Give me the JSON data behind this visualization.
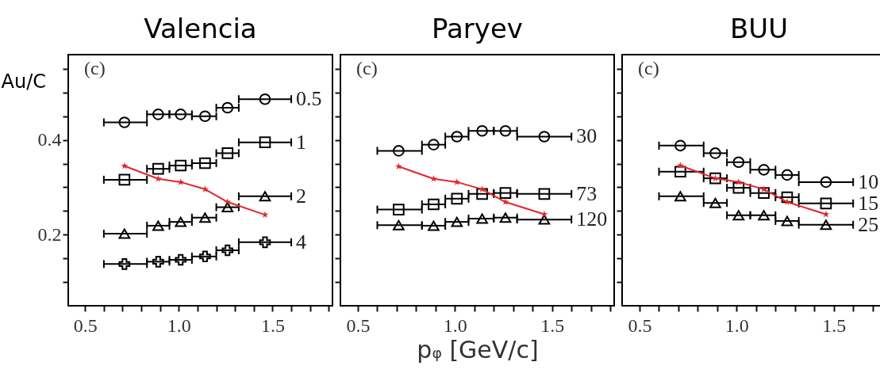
{
  "chart_data": [
    {
      "type": "scatter",
      "title": "Valencia",
      "ylabel": "Au/C",
      "annotations": [
        "(c)"
      ],
      "x": [
        0.71,
        0.89,
        1.01,
        1.14,
        1.26,
        1.46
      ],
      "xlim": [
        0.41,
        1.82
      ],
      "ylim": [
        0.05,
        0.58
      ],
      "xticks": [
        {
          "value": 0.5,
          "label": "0.5"
        },
        {
          "value": 0.6,
          "label": null
        },
        {
          "value": 0.7,
          "label": null
        },
        {
          "value": 0.8,
          "label": null
        },
        {
          "value": 0.9,
          "label": null
        },
        {
          "value": 1.0,
          "label": "1.0"
        },
        {
          "value": 1.1,
          "label": null
        },
        {
          "value": 1.2,
          "label": null
        },
        {
          "value": 1.3,
          "label": null
        },
        {
          "value": 1.4,
          "label": null
        },
        {
          "value": 1.5,
          "label": "1.5"
        },
        {
          "value": 1.6,
          "label": null
        },
        {
          "value": 1.7,
          "label": null
        },
        {
          "value": 1.8,
          "label": null
        }
      ],
      "yticks": [
        {
          "value": 0.1,
          "label": null
        },
        {
          "value": 0.15,
          "label": null
        },
        0.2,
        {
          "value": 0.25,
          "label": null
        },
        {
          "value": 0.3,
          "label": null
        },
        {
          "value": 0.35,
          "label": null
        },
        0.4,
        {
          "value": 0.45,
          "label": null
        },
        {
          "value": 0.5,
          "label": null
        },
        {
          "value": 0.55,
          "label": null
        }
      ],
      "series": [
        {
          "name": "0.5",
          "type": "scatter",
          "marker": "circle",
          "color": "#000000",
          "values": [
            0.437,
            0.454,
            0.454,
            0.45,
            0.468,
            0.486
          ],
          "xerrors": [
            [
              0.6,
              0.83
            ],
            [
              0.83,
              0.95
            ],
            [
              0.95,
              1.07
            ],
            [
              1.07,
              1.2
            ],
            [
              1.2,
              1.32
            ],
            [
              1.32,
              1.6
            ]
          ]
        },
        {
          "name": "1",
          "type": "scatter",
          "marker": "square",
          "color": "#000000",
          "values": [
            0.316,
            0.339,
            0.346,
            0.351,
            0.372,
            0.395
          ],
          "xerrors": [
            [
              0.6,
              0.83
            ],
            [
              0.83,
              0.95
            ],
            [
              0.95,
              1.07
            ],
            [
              1.07,
              1.2
            ],
            [
              1.2,
              1.32
            ],
            [
              1.32,
              1.6
            ]
          ]
        },
        {
          "name": "2",
          "type": "scatter",
          "marker": "triangle",
          "color": "#000000",
          "values": [
            0.202,
            0.219,
            0.227,
            0.236,
            0.258,
            0.281
          ],
          "xerrors": [
            [
              0.6,
              0.83
            ],
            [
              0.83,
              0.95
            ],
            [
              0.95,
              1.07
            ],
            [
              1.07,
              1.2
            ],
            [
              1.2,
              1.32
            ],
            [
              1.32,
              1.6
            ]
          ]
        },
        {
          "name": "4",
          "type": "scatter",
          "marker": "cross",
          "color": "#000000",
          "values": [
            0.138,
            0.143,
            0.147,
            0.154,
            0.167,
            0.184
          ],
          "xerrors": [
            [
              0.6,
              0.83
            ],
            [
              0.83,
              0.95
            ],
            [
              0.95,
              1.07
            ],
            [
              1.07,
              1.2
            ],
            [
              1.2,
              1.32
            ],
            [
              1.32,
              1.6
            ]
          ]
        },
        {
          "type": "line",
          "marker": "star",
          "color": "#e0282e",
          "values": [
            0.345,
            0.318,
            0.311,
            0.296,
            0.269,
            0.242
          ]
        }
      ]
    },
    {
      "type": "scatter",
      "title": "Paryev",
      "xlabel": "pᵩ [GeV/c]",
      "annotations": [
        "(c)"
      ],
      "tick_labels": "x",
      "x": [
        0.71,
        0.89,
        1.01,
        1.14,
        1.26,
        1.46
      ],
      "xlim": [
        0.41,
        1.82
      ],
      "ylim": [
        0.05,
        0.58
      ],
      "xticks": [
        {
          "value": 0.5,
          "label": "0.5"
        },
        {
          "value": 0.6,
          "label": null
        },
        {
          "value": 0.7,
          "label": null
        },
        {
          "value": 0.8,
          "label": null
        },
        {
          "value": 0.9,
          "label": null
        },
        {
          "value": 1.0,
          "label": "1.0"
        },
        {
          "value": 1.1,
          "label": null
        },
        {
          "value": 1.2,
          "label": null
        },
        {
          "value": 1.3,
          "label": null
        },
        {
          "value": 1.4,
          "label": null
        },
        {
          "value": 1.5,
          "label": "1.5"
        },
        {
          "value": 1.6,
          "label": null
        },
        {
          "value": 1.7,
          "label": null
        },
        {
          "value": 1.8,
          "label": null
        }
      ],
      "yticks": [
        {
          "value": 0.1,
          "label": null
        },
        {
          "value": 0.15,
          "label": null
        },
        {
          "value": 0.2,
          "label": null
        },
        {
          "value": 0.25,
          "label": null
        },
        {
          "value": 0.3,
          "label": null
        },
        {
          "value": 0.35,
          "label": null
        },
        {
          "value": 0.4,
          "label": null
        },
        {
          "value": 0.45,
          "label": null
        },
        {
          "value": 0.5,
          "label": null
        },
        {
          "value": 0.55,
          "label": null
        }
      ],
      "series": [
        {
          "name": "30",
          "type": "scatter",
          "marker": "circle",
          "color": "#000000",
          "values": [
            0.377,
            0.39,
            0.407,
            0.419,
            0.419,
            0.407
          ],
          "xerrors": [
            [
              0.6,
              0.83
            ],
            [
              0.83,
              0.95
            ],
            [
              0.95,
              1.07
            ],
            [
              1.07,
              1.2
            ],
            [
              1.2,
              1.32
            ],
            [
              1.32,
              1.6
            ]
          ]
        },
        {
          "name": "73",
          "type": "scatter",
          "marker": "square",
          "color": "#000000",
          "values": [
            0.253,
            0.264,
            0.276,
            0.286,
            0.288,
            0.286
          ],
          "xerrors": [
            [
              0.6,
              0.83
            ],
            [
              0.83,
              0.95
            ],
            [
              0.95,
              1.07
            ],
            [
              1.07,
              1.2
            ],
            [
              1.2,
              1.32
            ],
            [
              1.32,
              1.6
            ]
          ]
        },
        {
          "name": "120",
          "type": "scatter",
          "marker": "triangle",
          "color": "#000000",
          "values": [
            0.22,
            0.219,
            0.227,
            0.234,
            0.236,
            0.232
          ],
          "xerrors": [
            [
              0.6,
              0.83
            ],
            [
              0.83,
              0.95
            ],
            [
              0.95,
              1.07
            ],
            [
              1.07,
              1.2
            ],
            [
              1.2,
              1.32
            ],
            [
              1.32,
              1.6
            ]
          ]
        },
        {
          "type": "line",
          "marker": "star",
          "color": "#e0282e",
          "values": [
            0.344,
            0.318,
            0.311,
            0.296,
            0.269,
            0.243
          ]
        }
      ]
    },
    {
      "type": "scatter",
      "title": "BUU",
      "annotations": [
        "(c)"
      ],
      "tick_labels": "x",
      "x": [
        0.71,
        0.89,
        1.01,
        1.14,
        1.26,
        1.46
      ],
      "xlim": [
        0.41,
        1.82
      ],
      "ylim": [
        0.05,
        0.58
      ],
      "xticks": [
        {
          "value": 0.5,
          "label": "0.5"
        },
        {
          "value": 0.6,
          "label": null
        },
        {
          "value": 0.7,
          "label": null
        },
        {
          "value": 0.8,
          "label": null
        },
        {
          "value": 0.9,
          "label": null
        },
        {
          "value": 1.0,
          "label": "1.0"
        },
        {
          "value": 1.1,
          "label": null
        },
        {
          "value": 1.2,
          "label": null
        },
        {
          "value": 1.3,
          "label": null
        },
        {
          "value": 1.4,
          "label": null
        },
        {
          "value": 1.5,
          "label": "1.5"
        },
        {
          "value": 1.6,
          "label": null
        },
        {
          "value": 1.7,
          "label": null
        },
        {
          "value": 1.8,
          "label": null
        }
      ],
      "yticks": [
        {
          "value": 0.1,
          "label": null
        },
        {
          "value": 0.15,
          "label": null
        },
        {
          "value": 0.2,
          "label": null
        },
        {
          "value": 0.25,
          "label": null
        },
        {
          "value": 0.3,
          "label": null
        },
        {
          "value": 0.35,
          "label": null
        },
        {
          "value": 0.4,
          "label": null
        },
        {
          "value": 0.45,
          "label": null
        },
        {
          "value": 0.5,
          "label": null
        },
        {
          "value": 0.55,
          "label": null
        }
      ],
      "series": [
        {
          "name": "10",
          "type": "scatter",
          "marker": "circle",
          "color": "#000000",
          "values": [
            0.388,
            0.372,
            0.353,
            0.337,
            0.326,
            0.311
          ],
          "xerrors": [
            [
              0.6,
              0.83
            ],
            [
              0.83,
              0.95
            ],
            [
              0.95,
              1.07
            ],
            [
              1.07,
              1.2
            ],
            [
              1.2,
              1.32
            ],
            [
              1.32,
              1.6
            ]
          ]
        },
        {
          "name": "15",
          "type": "scatter",
          "marker": "square",
          "color": "#000000",
          "values": [
            0.333,
            0.319,
            0.299,
            0.288,
            0.279,
            0.266
          ],
          "xerrors": [
            [
              0.6,
              0.83
            ],
            [
              0.83,
              0.95
            ],
            [
              0.95,
              1.07
            ],
            [
              1.07,
              1.2
            ],
            [
              1.2,
              1.32
            ],
            [
              1.32,
              1.6
            ]
          ]
        },
        {
          "name": "25",
          "type": "scatter",
          "marker": "triangle",
          "color": "#000000",
          "values": [
            0.281,
            0.267,
            0.241,
            0.241,
            0.229,
            0.221
          ],
          "xerrors": [
            [
              0.6,
              0.83
            ],
            [
              0.83,
              0.95
            ],
            [
              0.95,
              1.07
            ],
            [
              1.07,
              1.2
            ],
            [
              1.2,
              1.32
            ],
            [
              1.32,
              1.6
            ]
          ]
        },
        {
          "type": "line",
          "marker": "star",
          "color": "#e0282e",
          "values": [
            0.346,
            0.319,
            0.311,
            0.296,
            0.269,
            0.243
          ]
        }
      ]
    }
  ]
}
